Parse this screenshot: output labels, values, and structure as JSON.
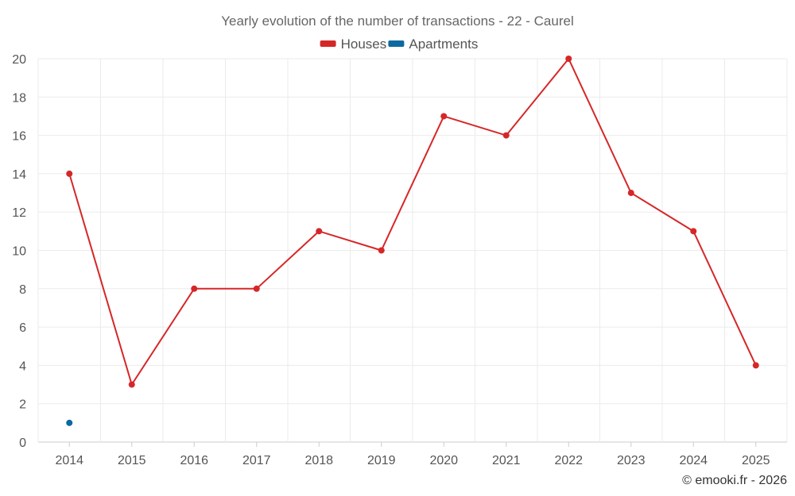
{
  "chart_data": {
    "type": "line",
    "title": "Yearly evolution of the number of transactions - 22 - Caurel",
    "categories": [
      "2014",
      "2015",
      "2016",
      "2017",
      "2018",
      "2019",
      "2020",
      "2021",
      "2022",
      "2023",
      "2024",
      "2025"
    ],
    "series": [
      {
        "name": "Houses",
        "color": "#d62728",
        "values": [
          14,
          3,
          8,
          8,
          11,
          10,
          17,
          16,
          20,
          13,
          11,
          4
        ]
      },
      {
        "name": "Apartments",
        "color": "#0a6aa1",
        "values": [
          1,
          null,
          null,
          null,
          null,
          null,
          null,
          null,
          null,
          null,
          null,
          null
        ]
      }
    ],
    "ylim": [
      0,
      20
    ],
    "yticks": [
      0,
      2,
      4,
      6,
      8,
      10,
      12,
      14,
      16,
      18,
      20
    ],
    "xlabel": "",
    "ylabel": "",
    "grid": true,
    "legend": "top-center"
  },
  "credit": "© emooki.fr - 2026"
}
